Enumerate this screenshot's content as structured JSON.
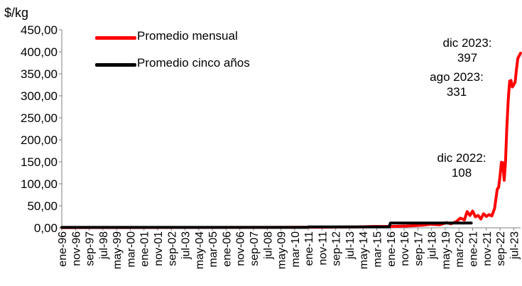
{
  "chart_data": {
    "type": "line",
    "ylabel": "$/kg",
    "ylim": [
      0,
      450
    ],
    "yticks": [
      "0,00",
      "50,00",
      "100,00",
      "150,00",
      "200,00",
      "250,00",
      "300,00",
      "350,00",
      "400,00",
      "450,00"
    ],
    "xticks": [
      "ene-96",
      "nov-96",
      "sep-97",
      "jul-98",
      "may-99",
      "mar-00",
      "ene-01",
      "nov-01",
      "sep-02",
      "jul-03",
      "may-04",
      "mar-05",
      "ene-06",
      "nov-06",
      "sep-07",
      "jul-08",
      "may-09",
      "mar-10",
      "ene-11",
      "nov-11",
      "sep-12",
      "jul-13",
      "may-14",
      "mar-15",
      "ene-16",
      "nov-16",
      "sep-17",
      "jul-18",
      "may-19",
      "mar-20",
      "ene-21",
      "nov-21",
      "sep-22",
      "jul-23"
    ],
    "x_start": "1996-01",
    "x_end": "2023-12",
    "grid": false,
    "legend_position": "top-left",
    "series": [
      {
        "name": "Promedio mensual",
        "color": "#ff0000",
        "points": [
          [
            "1996-01",
            0.5
          ],
          [
            "2000-01",
            0.6
          ],
          [
            "2005-01",
            0.8
          ],
          [
            "2010-01",
            1.2
          ],
          [
            "2012-01",
            1.5
          ],
          [
            "2014-01",
            2
          ],
          [
            "2015-01",
            3
          ],
          [
            "2016-01",
            3
          ],
          [
            "2017-01",
            4
          ],
          [
            "2018-01",
            6
          ],
          [
            "2018-06",
            8
          ],
          [
            "2019-01",
            7
          ],
          [
            "2019-06",
            12
          ],
          [
            "2019-09",
            9
          ],
          [
            "2020-01",
            14
          ],
          [
            "2020-04",
            22
          ],
          [
            "2020-07",
            18
          ],
          [
            "2020-09",
            37
          ],
          [
            "2020-11",
            28
          ],
          [
            "2021-01",
            38
          ],
          [
            "2021-03",
            25
          ],
          [
            "2021-05",
            28
          ],
          [
            "2021-07",
            20
          ],
          [
            "2021-09",
            32
          ],
          [
            "2021-11",
            26
          ],
          [
            "2022-01",
            30
          ],
          [
            "2022-03",
            27
          ],
          [
            "2022-05",
            44
          ],
          [
            "2022-07",
            88
          ],
          [
            "2022-08",
            92
          ],
          [
            "2022-09",
            118
          ],
          [
            "2022-10",
            149
          ],
          [
            "2022-11",
            148
          ],
          [
            "2022-12",
            108
          ],
          [
            "2023-01",
            150
          ],
          [
            "2023-02",
            230
          ],
          [
            "2023-03",
            290
          ],
          [
            "2023-04",
            333
          ],
          [
            "2023-05",
            335
          ],
          [
            "2023-06",
            320
          ],
          [
            "2023-07",
            325
          ],
          [
            "2023-08",
            331
          ],
          [
            "2023-09",
            360
          ],
          [
            "2023-10",
            385
          ],
          [
            "2023-12",
            397
          ]
        ]
      },
      {
        "name": "Promedio cinco años",
        "color": "#000000",
        "points": [
          [
            "1996-01",
            1
          ],
          [
            "2000-12",
            1
          ],
          [
            "2001-01",
            1
          ],
          [
            "2005-12",
            1
          ],
          [
            "2006-01",
            1
          ],
          [
            "2010-12",
            1
          ],
          [
            "2011-01",
            2
          ],
          [
            "2015-12",
            2
          ],
          [
            "2016-01",
            11
          ],
          [
            "2020-12",
            11
          ]
        ]
      }
    ],
    "annotations": [
      {
        "lines": [
          "dic 2023:",
          "397"
        ]
      },
      {
        "lines": [
          "ago 2023:",
          "331"
        ]
      },
      {
        "lines": [
          "dic 2022:",
          "108"
        ]
      }
    ]
  }
}
